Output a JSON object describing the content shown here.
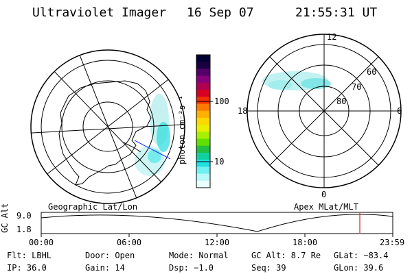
{
  "header": {
    "instrument": "Ultraviolet Imager",
    "date": "16 Sep 07",
    "time": "21:55:31 UT"
  },
  "colorbar": {
    "unit_label": "photon cm⁻²s⁻¹",
    "ticks": [
      "100",
      "10"
    ],
    "colors": [
      "#000033",
      "#1a0040",
      "#55006a",
      "#8a007a",
      "#b00050",
      "#d80020",
      "#f03000",
      "#ff7a00",
      "#ffb000",
      "#ffd800",
      "#e8f000",
      "#a8f000",
      "#60e000",
      "#20c040",
      "#10d0a0",
      "#20e0e0",
      "#70f0f0",
      "#b8f8f8",
      "#e8ffff"
    ]
  },
  "maps": {
    "left_title": "Geographic Lat/Lon",
    "right_title": "Apex MLat/MLT",
    "mlt_labels": {
      "top": "12",
      "bottom": "0",
      "left": "18",
      "right": "6"
    },
    "lat_labels": [
      "60",
      "70",
      "80"
    ]
  },
  "altitude_plot": {
    "axis_label": "GC Alt",
    "y_ticks": [
      "9.0",
      "1.8"
    ],
    "x_ticks": [
      "00:00",
      "06:00",
      "12:00",
      "18:00",
      "23:59"
    ]
  },
  "footer": {
    "filter": "Flt: LBHL",
    "ip": "IP: 36.0",
    "door": "Door: Open",
    "gain": "Gain: 14",
    "mode": "Mode: Normal",
    "dsp": "Dsp:   −1.0",
    "gc_alt": "GC Alt: 8.7 Re",
    "seq": "Seq: 39",
    "glat": "GLat: −83.4",
    "glon": "GLon:  39.6"
  }
}
